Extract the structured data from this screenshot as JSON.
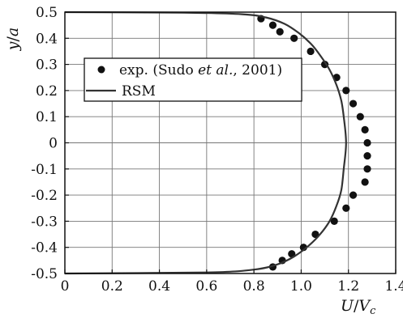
{
  "chart_data": {
    "type": "scatter",
    "xlim": [
      0,
      1.4
    ],
    "ylim": [
      -0.5,
      0.5
    ],
    "grid": true,
    "xticks": [
      0,
      0.2,
      0.4,
      0.6,
      0.8,
      1.0,
      1.2,
      1.4
    ],
    "xtick_labels": [
      "0",
      "0.2",
      "0.4",
      "0.6",
      "0.8",
      "1.0",
      "1.2",
      "1.4"
    ],
    "yticks": [
      0.5,
      0.4,
      0.3,
      0.2,
      0.1,
      0,
      -0.1,
      -0.2,
      -0.3,
      -0.4,
      -0.5
    ],
    "ytick_labels": [
      "0.5",
      "0.4",
      "0.3",
      "0.2",
      "0.1",
      "0",
      "-0.1",
      "-0.2",
      "-0.3",
      "-0.4",
      "-0.5"
    ],
    "xlabel": "U/Vc",
    "ylabel": "y/a",
    "legend": {
      "placement": "upper-left",
      "entries": [
        {
          "marker": "dot",
          "text_before": "exp. (Sudo ",
          "text_em": "et al.",
          "text_after": ", 2001)"
        },
        {
          "marker": "line",
          "text_before": "RSM",
          "text_em": "",
          "text_after": ""
        }
      ]
    },
    "series": [
      {
        "name": "exp. (Sudo et al., 2001)",
        "kind": "points",
        "points": [
          {
            "x": 0.83,
            "y": 0.475
          },
          {
            "x": 0.88,
            "y": 0.45
          },
          {
            "x": 0.91,
            "y": 0.425
          },
          {
            "x": 0.97,
            "y": 0.4
          },
          {
            "x": 1.04,
            "y": 0.35
          },
          {
            "x": 1.1,
            "y": 0.3
          },
          {
            "x": 1.15,
            "y": 0.25
          },
          {
            "x": 1.19,
            "y": 0.2
          },
          {
            "x": 1.22,
            "y": 0.15
          },
          {
            "x": 1.25,
            "y": 0.1
          },
          {
            "x": 1.27,
            "y": 0.05
          },
          {
            "x": 1.28,
            "y": 0.0
          },
          {
            "x": 1.28,
            "y": -0.05
          },
          {
            "x": 1.28,
            "y": -0.1
          },
          {
            "x": 1.27,
            "y": -0.15
          },
          {
            "x": 1.22,
            "y": -0.2
          },
          {
            "x": 1.19,
            "y": -0.25
          },
          {
            "x": 1.14,
            "y": -0.3
          },
          {
            "x": 1.06,
            "y": -0.35
          },
          {
            "x": 1.01,
            "y": -0.4
          },
          {
            "x": 0.96,
            "y": -0.425
          },
          {
            "x": 0.92,
            "y": -0.45
          },
          {
            "x": 0.88,
            "y": -0.475
          }
        ]
      },
      {
        "name": "RSM",
        "kind": "line",
        "points": [
          {
            "x": 0.0,
            "y": 0.5
          },
          {
            "x": 0.5,
            "y": 0.498
          },
          {
            "x": 0.75,
            "y": 0.492
          },
          {
            "x": 0.85,
            "y": 0.48
          },
          {
            "x": 0.93,
            "y": 0.455
          },
          {
            "x": 0.99,
            "y": 0.42
          },
          {
            "x": 1.04,
            "y": 0.38
          },
          {
            "x": 1.08,
            "y": 0.335
          },
          {
            "x": 1.12,
            "y": 0.28
          },
          {
            "x": 1.15,
            "y": 0.22
          },
          {
            "x": 1.17,
            "y": 0.16
          },
          {
            "x": 1.18,
            "y": 0.1
          },
          {
            "x": 1.19,
            "y": 0.0
          },
          {
            "x": 1.18,
            "y": -0.1
          },
          {
            "x": 1.17,
            "y": -0.18
          },
          {
            "x": 1.15,
            "y": -0.24
          },
          {
            "x": 1.12,
            "y": -0.3
          },
          {
            "x": 1.08,
            "y": -0.35
          },
          {
            "x": 1.03,
            "y": -0.395
          },
          {
            "x": 0.97,
            "y": -0.435
          },
          {
            "x": 0.9,
            "y": -0.465
          },
          {
            "x": 0.8,
            "y": -0.485
          },
          {
            "x": 0.6,
            "y": -0.496
          },
          {
            "x": 0.0,
            "y": -0.5
          }
        ]
      }
    ]
  }
}
